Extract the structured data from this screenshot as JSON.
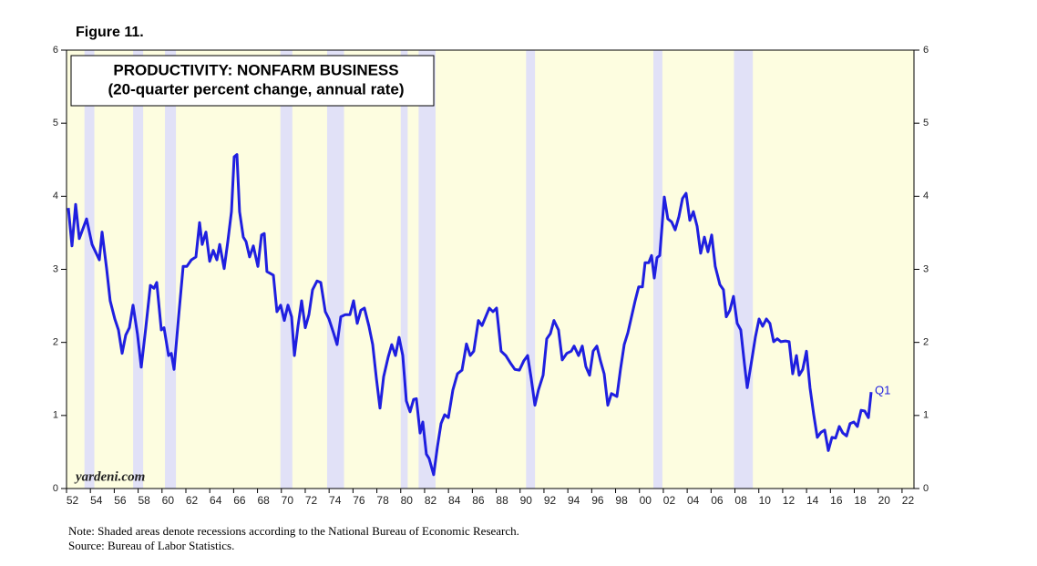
{
  "chart_data": {
    "type": "line",
    "figure_label": "Figure 11.",
    "title": "PRODUCTIVITY: NONFARM BUSINESS",
    "subtitle": "(20-quarter percent change, annual rate)",
    "watermark": "yardeni.com",
    "annotation": "Q1",
    "notes": [
      "Note: Shaded areas denote recessions according to the National Bureau of Economic Research.",
      "Source: Bureau of Labor Statistics."
    ],
    "color": "#1f1fe0",
    "recession_color": "#e1e1f7",
    "background": "#fdfde0",
    "xlim": [
      1952,
      2023
    ],
    "ylim": [
      0,
      6
    ],
    "yticks": [
      0,
      1,
      2,
      3,
      4,
      5,
      6
    ],
    "xticks": [
      {
        "value": 1952,
        "label": "52"
      },
      {
        "value": 1954,
        "label": "54"
      },
      {
        "value": 1956,
        "label": "56"
      },
      {
        "value": 1958,
        "label": "58"
      },
      {
        "value": 1960,
        "label": "60"
      },
      {
        "value": 1962,
        "label": "62"
      },
      {
        "value": 1964,
        "label": "64"
      },
      {
        "value": 1966,
        "label": "66"
      },
      {
        "value": 1968,
        "label": "68"
      },
      {
        "value": 1970,
        "label": "70"
      },
      {
        "value": 1972,
        "label": "72"
      },
      {
        "value": 1974,
        "label": "74"
      },
      {
        "value": 1976,
        "label": "76"
      },
      {
        "value": 1978,
        "label": "78"
      },
      {
        "value": 1980,
        "label": "80"
      },
      {
        "value": 1982,
        "label": "82"
      },
      {
        "value": 1984,
        "label": "84"
      },
      {
        "value": 1986,
        "label": "86"
      },
      {
        "value": 1988,
        "label": "88"
      },
      {
        "value": 1990,
        "label": "90"
      },
      {
        "value": 1992,
        "label": "92"
      },
      {
        "value": 1994,
        "label": "94"
      },
      {
        "value": 1996,
        "label": "96"
      },
      {
        "value": 1998,
        "label": "98"
      },
      {
        "value": 2000,
        "label": "00"
      },
      {
        "value": 2002,
        "label": "02"
      },
      {
        "value": 2004,
        "label": "04"
      },
      {
        "value": 2006,
        "label": "06"
      },
      {
        "value": 2008,
        "label": "08"
      },
      {
        "value": 2010,
        "label": "10"
      },
      {
        "value": 2012,
        "label": "12"
      },
      {
        "value": 2014,
        "label": "14"
      },
      {
        "value": 2016,
        "label": "16"
      },
      {
        "value": 2018,
        "label": "18"
      },
      {
        "value": 2020,
        "label": "20"
      },
      {
        "value": 2022,
        "label": "22"
      }
    ],
    "recessions": [
      [
        1953.5,
        1954.33
      ],
      [
        1957.58,
        1958.42
      ],
      [
        1960.25,
        1961.17
      ],
      [
        1969.92,
        1970.92
      ],
      [
        1973.83,
        1975.25
      ],
      [
        1980.0,
        1980.58
      ],
      [
        1981.5,
        1982.92
      ],
      [
        1990.5,
        1991.25
      ],
      [
        2001.17,
        2001.92
      ],
      [
        2007.92,
        2009.5
      ]
    ],
    "x": [
      1952.15,
      1952.46,
      1952.76,
      1953.07,
      1953.68,
      1954.14,
      1954.75,
      1954.98,
      1955.36,
      1955.66,
      1956.05,
      1956.35,
      1956.66,
      1956.96,
      1957.27,
      1957.57,
      1957.95,
      1958.26,
      1958.64,
      1959.02,
      1959.33,
      1959.56,
      1959.94,
      1960.17,
      1960.55,
      1960.78,
      1961.01,
      1961.39,
      1961.77,
      1962.08,
      1962.46,
      1962.84,
      1963.15,
      1963.37,
      1963.68,
      1963.99,
      1964.29,
      1964.6,
      1964.83,
      1965.21,
      1965.51,
      1965.82,
      1966.05,
      1966.28,
      1966.5,
      1966.81,
      1967.04,
      1967.34,
      1967.65,
      1968.03,
      1968.34,
      1968.57,
      1968.79,
      1969.33,
      1969.63,
      1969.94,
      1970.25,
      1970.55,
      1970.86,
      1971.09,
      1971.39,
      1971.7,
      1972.0,
      1972.31,
      1972.61,
      1972.99,
      1973.3,
      1973.68,
      1973.99,
      1974.37,
      1974.67,
      1974.98,
      1975.36,
      1975.74,
      1976.05,
      1976.35,
      1976.66,
      1976.96,
      1977.34,
      1977.65,
      1977.96,
      1978.26,
      1978.57,
      1978.95,
      1979.25,
      1979.56,
      1979.86,
      1980.17,
      1980.47,
      1980.78,
      1981.08,
      1981.31,
      1981.62,
      1981.85,
      1982.15,
      1982.38,
      1982.76,
      1983.07,
      1983.38,
      1983.68,
      1983.99,
      1984.37,
      1984.75,
      1985.13,
      1985.51,
      1985.82,
      1986.12,
      1986.51,
      1986.81,
      1987.12,
      1987.42,
      1987.73,
      1988.03,
      1988.41,
      1988.8,
      1989.18,
      1989.56,
      1989.94,
      1990.32,
      1990.63,
      1990.93,
      1991.24,
      1991.54,
      1991.93,
      1992.23,
      1992.54,
      1992.84,
      1993.22,
      1993.53,
      1993.91,
      1994.29,
      1994.52,
      1994.9,
      1995.21,
      1995.51,
      1995.82,
      1996.12,
      1996.43,
      1996.73,
      1997.04,
      1997.35,
      1997.65,
      1998.11,
      1998.41,
      1998.72,
      1999.03,
      1999.33,
      1999.64,
      1999.94,
      2000.25,
      2000.47,
      2000.78,
      2001.01,
      2001.24,
      2001.47,
      2001.7,
      2002.08,
      2002.38,
      2002.69,
      2002.99,
      2003.3,
      2003.61,
      2003.91,
      2004.22,
      2004.52,
      2004.83,
      2005.13,
      2005.44,
      2005.74,
      2006.05,
      2006.35,
      2006.74,
      2007.04,
      2007.27,
      2007.58,
      2007.88,
      2008.19,
      2008.49,
      2008.8,
      2009.03,
      2009.41,
      2009.71,
      2010.02,
      2010.32,
      2010.63,
      2010.93,
      2011.24,
      2011.55,
      2011.85,
      2012.23,
      2012.54,
      2012.84,
      2013.15,
      2013.38,
      2013.68,
      2013.99,
      2014.29,
      2014.6,
      2014.9,
      2015.21,
      2015.52,
      2015.82,
      2016.13,
      2016.43,
      2016.74,
      2017.04,
      2017.35,
      2017.65,
      2017.96,
      2018.26,
      2018.57,
      2018.87,
      2019.18,
      2019.41
    ],
    "values": [
      3.84,
      3.32,
      3.89,
      3.42,
      3.69,
      3.34,
      3.13,
      3.51,
      3.01,
      2.57,
      2.32,
      2.17,
      1.85,
      2.1,
      2.2,
      2.51,
      2.11,
      1.66,
      2.2,
      2.78,
      2.74,
      2.82,
      2.17,
      2.2,
      1.82,
      1.85,
      1.63,
      2.35,
      3.04,
      3.04,
      3.13,
      3.17,
      3.64,
      3.34,
      3.51,
      3.11,
      3.26,
      3.13,
      3.34,
      3.01,
      3.38,
      3.79,
      4.54,
      4.57,
      3.79,
      3.44,
      3.38,
      3.17,
      3.32,
      3.04,
      3.47,
      3.49,
      2.97,
      2.92,
      2.42,
      2.51,
      2.3,
      2.51,
      2.35,
      1.82,
      2.22,
      2.57,
      2.2,
      2.38,
      2.72,
      2.84,
      2.82,
      2.42,
      2.32,
      2.13,
      1.97,
      2.35,
      2.38,
      2.38,
      2.57,
      2.26,
      2.44,
      2.47,
      2.22,
      1.97,
      1.51,
      1.1,
      1.53,
      1.8,
      1.97,
      1.82,
      2.07,
      1.82,
      1.2,
      1.05,
      1.22,
      1.23,
      0.76,
      0.91,
      0.47,
      0.41,
      0.19,
      0.57,
      0.89,
      1.01,
      0.97,
      1.35,
      1.57,
      1.62,
      1.98,
      1.82,
      1.88,
      2.3,
      2.23,
      2.35,
      2.47,
      2.42,
      2.47,
      1.88,
      1.82,
      1.72,
      1.63,
      1.62,
      1.75,
      1.82,
      1.51,
      1.14,
      1.35,
      1.55,
      2.05,
      2.12,
      2.3,
      2.17,
      1.76,
      1.85,
      1.88,
      1.95,
      1.82,
      1.95,
      1.67,
      1.55,
      1.88,
      1.95,
      1.75,
      1.57,
      1.14,
      1.3,
      1.26,
      1.63,
      1.97,
      2.13,
      2.35,
      2.57,
      2.76,
      2.76,
      3.09,
      3.09,
      3.19,
      2.88,
      3.16,
      3.19,
      3.99,
      3.69,
      3.65,
      3.54,
      3.72,
      3.97,
      4.04,
      3.67,
      3.79,
      3.59,
      3.22,
      3.44,
      3.24,
      3.47,
      3.04,
      2.79,
      2.72,
      2.35,
      2.44,
      2.63,
      2.26,
      2.17,
      1.7,
      1.38,
      1.76,
      2.07,
      2.32,
      2.22,
      2.32,
      2.26,
      2.01,
      2.05,
      2.01,
      2.02,
      2.01,
      1.57,
      1.82,
      1.55,
      1.63,
      1.88,
      1.38,
      1.01,
      0.7,
      0.77,
      0.8,
      0.52,
      0.7,
      0.69,
      0.85,
      0.76,
      0.72,
      0.89,
      0.91,
      0.85,
      1.07,
      1.06,
      0.97,
      1.32
    ]
  }
}
